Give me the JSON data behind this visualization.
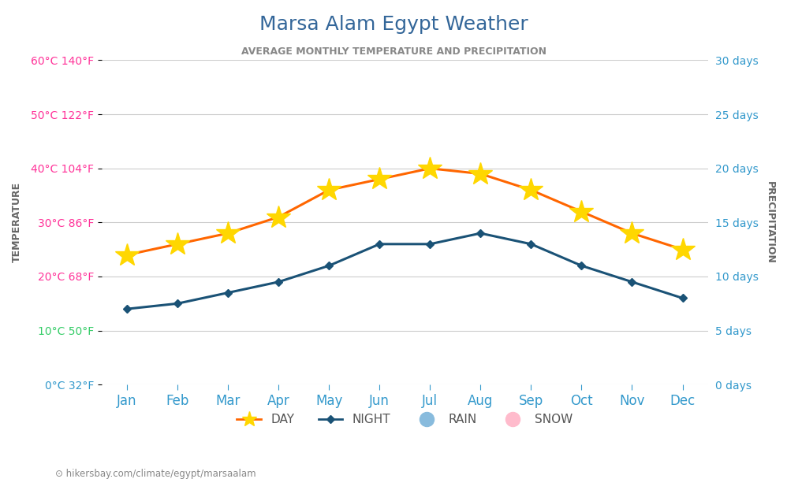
{
  "title": "Marsa Alam Egypt Weather",
  "subtitle": "AVERAGE MONTHLY TEMPERATURE AND PRECIPITATION",
  "months": [
    "Jan",
    "Feb",
    "Mar",
    "Apr",
    "May",
    "Jun",
    "Jul",
    "Aug",
    "Sep",
    "Oct",
    "Nov",
    "Dec"
  ],
  "day_temps": [
    24,
    26,
    28,
    31,
    36,
    38,
    40,
    39,
    36,
    32,
    28,
    25
  ],
  "night_temps": [
    14,
    15,
    17,
    19,
    22,
    26,
    26,
    28,
    26,
    22,
    19,
    16
  ],
  "day_color": "#ff6600",
  "night_color": "#1a5276",
  "sun_color": "#FFD700",
  "background_color": "#ffffff",
  "grid_color": "#cccccc",
  "title_color": "#336699",
  "left_axis_color": "#ff3399",
  "right_axis_color": "#3399cc",
  "bottom_axis_color": "#3399cc",
  "green_axis_color": "#33cc66",
  "blue_axis_color": "#3399cc",
  "ylim_left": [
    0,
    60
  ],
  "ylim_right": [
    0,
    30
  ],
  "left_yticks_celsius": [
    0,
    10,
    20,
    30,
    40,
    50,
    60
  ],
  "left_yticks_fahrenheit": [
    32,
    50,
    68,
    86,
    104,
    122,
    140
  ],
  "right_yticks": [
    0,
    5,
    10,
    15,
    20,
    25,
    30
  ],
  "watermark": "hikersbay.com/climate/egypt/marsaalam",
  "ylabel_left": "TEMPERATURE",
  "ylabel_right": "PRECIPITATION"
}
